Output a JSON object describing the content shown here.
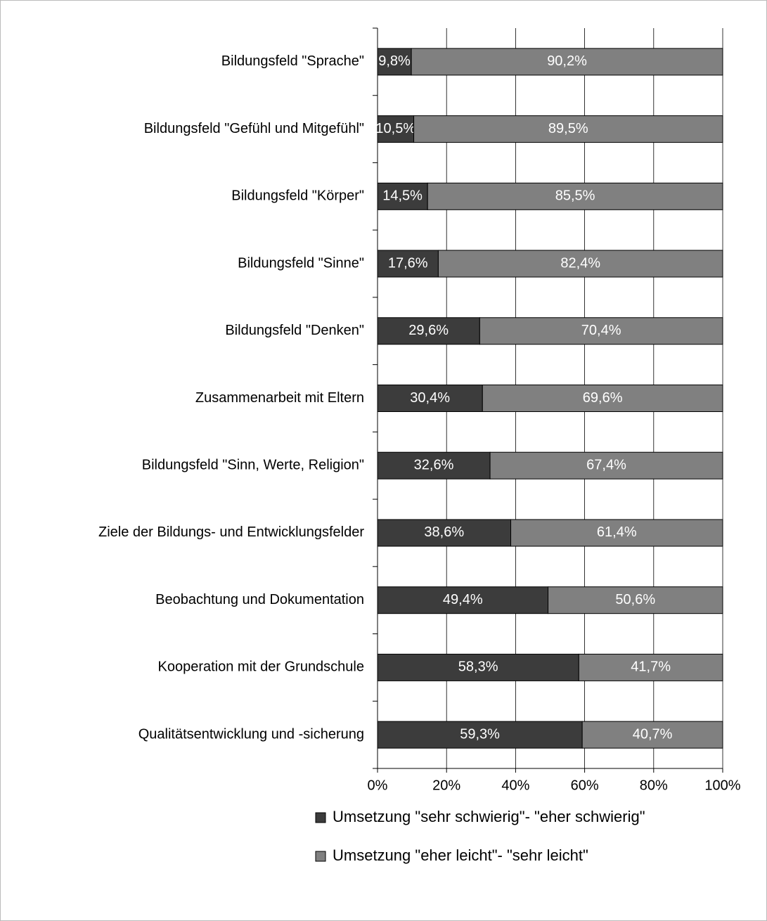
{
  "chart_data": {
    "type": "stacked_barh",
    "categories": [
      "Bildungsfeld \"Sprache\"",
      "Bildungsfeld \"Gefühl und Mitgefühl\"",
      "Bildungsfeld \"Körper\"",
      "Bildungsfeld \"Sinne\"",
      "Bildungsfeld \"Denken\"",
      "Zusammenarbeit mit Eltern",
      "Bildungsfeld \"Sinn, Werte, Religion\"",
      "Ziele der Bildungs- und Entwicklungsfelder",
      "Beobachtung und Dokumentation",
      "Kooperation mit der Grundschule",
      "Qualitätsentwicklung und -sicherung"
    ],
    "series": [
      {
        "name": "Umsetzung \"sehr schwierig\"- \"eher schwierig\"",
        "color": "#3c3c3c",
        "values": [
          9.8,
          10.5,
          14.5,
          17.6,
          29.6,
          30.4,
          32.6,
          38.6,
          49.4,
          58.3,
          59.3
        ],
        "value_labels": [
          "9,8%",
          "10,5%",
          "14,5%",
          "17,6%",
          "29,6%",
          "30,4%",
          "32,6%",
          "38,6%",
          "49,4%",
          "58,3%",
          "59,3%"
        ]
      },
      {
        "name": "Umsetzung \"eher leicht\"- \"sehr leicht\"",
        "color": "#808080",
        "values": [
          90.2,
          89.5,
          85.5,
          82.4,
          70.4,
          69.6,
          67.4,
          61.4,
          50.6,
          41.7,
          40.7
        ],
        "value_labels": [
          "90,2%",
          "89,5%",
          "85,5%",
          "82,4%",
          "70,4%",
          "69,6%",
          "67,4%",
          "61,4%",
          "50,6%",
          "41,7%",
          "40,7%"
        ]
      }
    ],
    "xlim": [
      0,
      100
    ],
    "xticks": [
      {
        "value": 0,
        "label": "0%"
      },
      {
        "value": 20,
        "label": "20%"
      },
      {
        "value": 40,
        "label": "40%"
      },
      {
        "value": 60,
        "label": "60%"
      },
      {
        "value": 80,
        "label": "80%"
      },
      {
        "value": 100,
        "label": "100%"
      }
    ],
    "grid": true,
    "legend": "bottom"
  }
}
